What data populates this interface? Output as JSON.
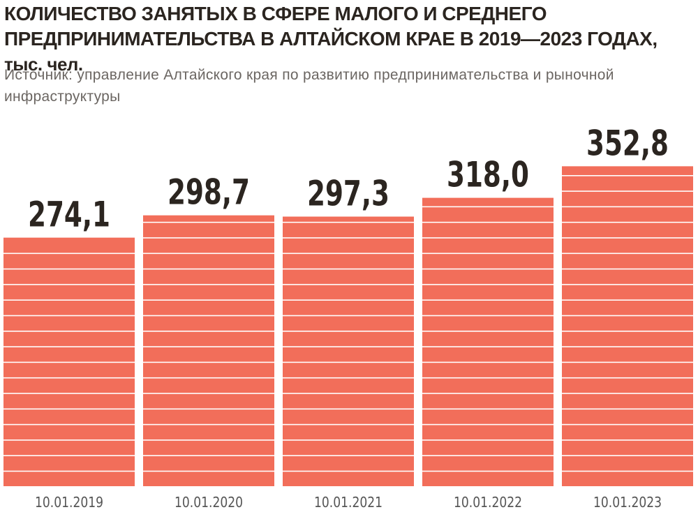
{
  "title": "КОЛИЧЕСТВО ЗАНЯТЫХ В СФЕРЕ МАЛОГО И СРЕДНЕГО ПРЕДПРИНИМАТЕЛЬСТВА В АЛТАЙСКОМ КРАЕ В 2019—2023 ГОДАХ,",
  "unit": "тыс. чел.",
  "source": "Источник: управление Алтайского края по развитию предпринимательства и рыночной инфраструктуры",
  "colors": {
    "bar": "#f26e5a",
    "stripe": "#ffffff",
    "text": "#2b2520",
    "tick": "#555555"
  },
  "chart_data": {
    "type": "bar",
    "title": "КОЛИЧЕСТВО ЗАНЯТЫХ В СФЕРЕ МАЛОГО И СРЕДНЕГО ПРЕДПРИНИМАТЕЛЬСТВА В АЛТАЙСКОМ КРАЕ В 2019—2023 ГОДАХ, тыс. чел.",
    "categories": [
      "10.01.2019",
      "10.01.2020",
      "10.01.2021",
      "10.01.2022",
      "10.01.2023"
    ],
    "values": [
      274.1,
      298.7,
      297.3,
      318.0,
      352.8
    ],
    "value_labels": [
      "274,1",
      "298,7",
      "297,3",
      "318,0",
      "352,8"
    ],
    "xlabel": "",
    "ylabel": "",
    "grid": false,
    "legend": "none"
  }
}
